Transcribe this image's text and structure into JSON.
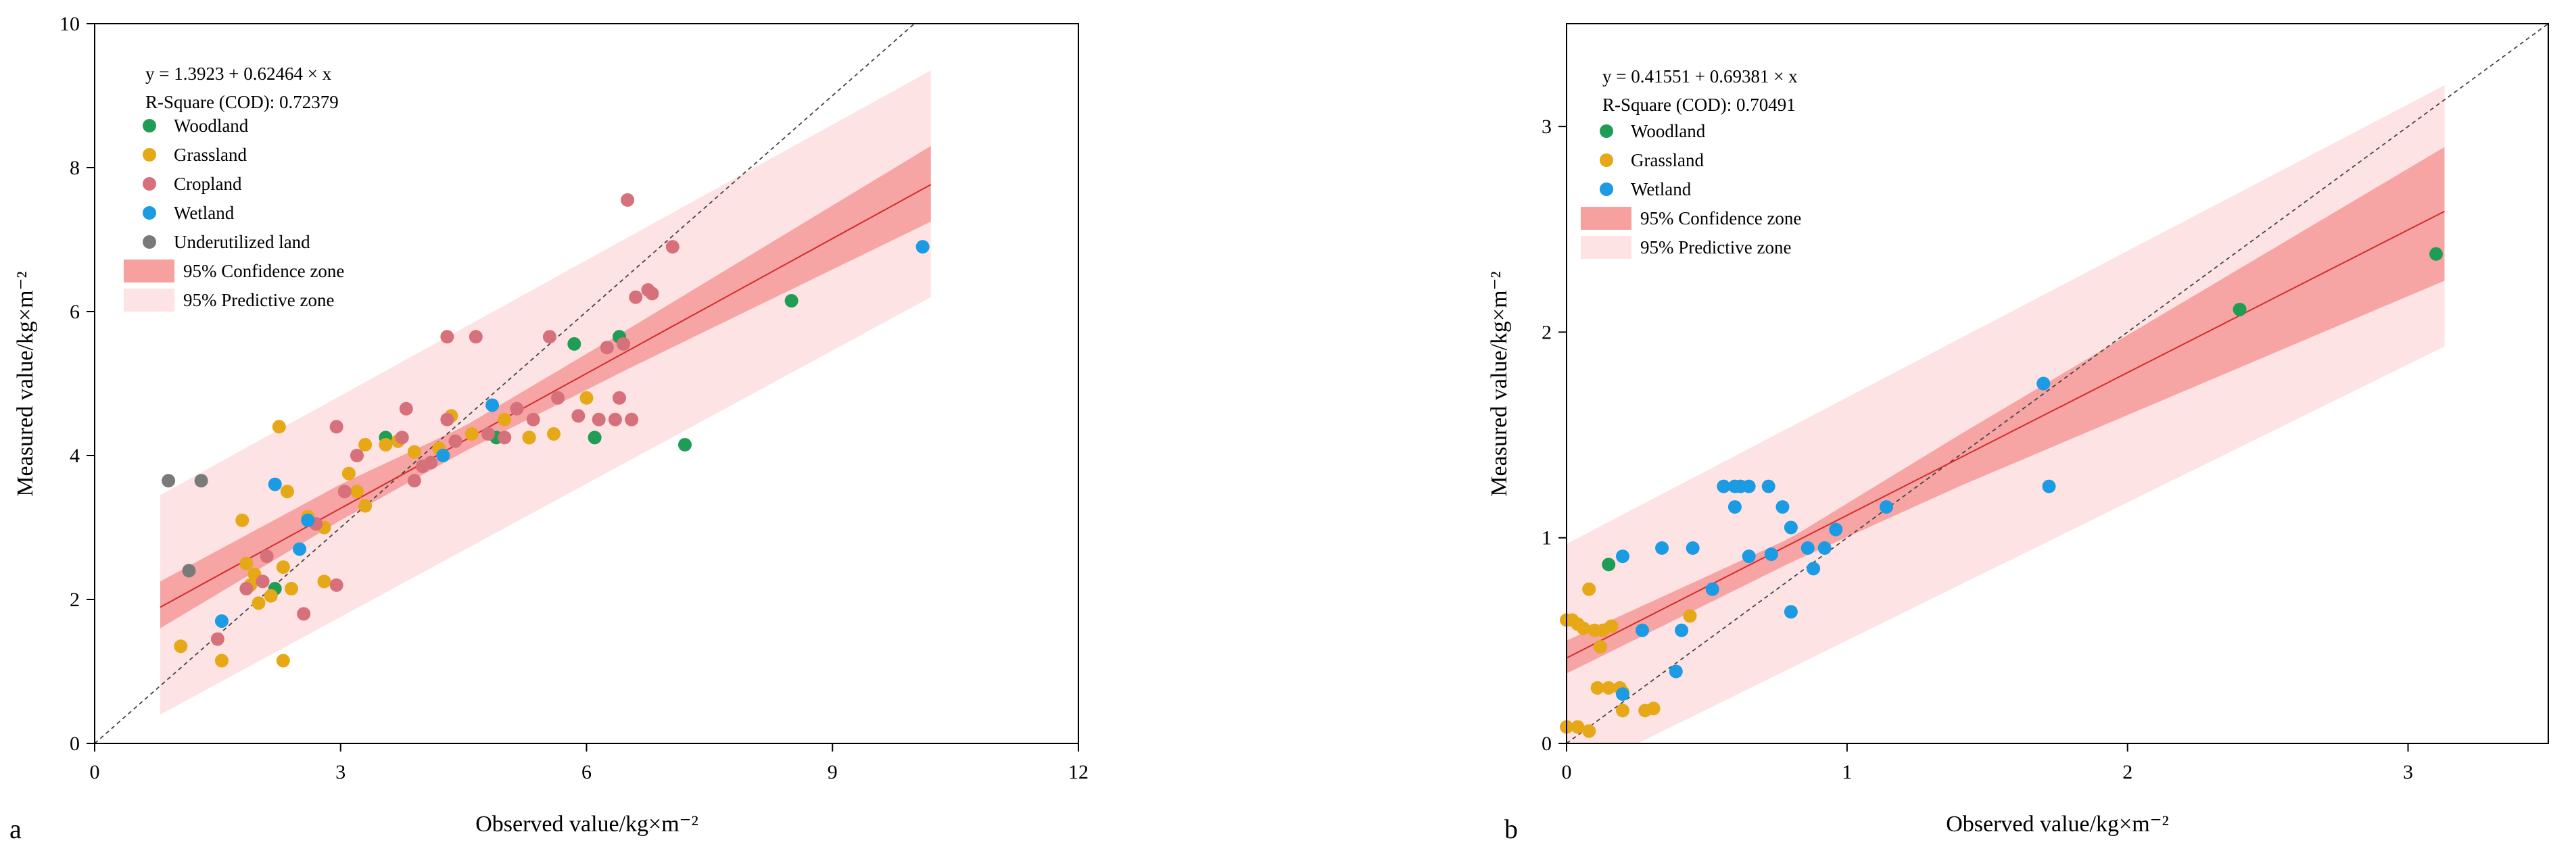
{
  "colors": {
    "Woodland": "#1f9d55",
    "Grassland": "#e6a817",
    "Cropland": "#d6707a",
    "Wetland": "#1a9be3",
    "Underutilized land": "#7a7a7a",
    "confidence": "#f6a0a0",
    "predictive": "#fde3e3",
    "fit_line": "#d42c2c",
    "ref_line": "#444444"
  },
  "chart_data": [
    {
      "type": "scatter",
      "panel_label": "a",
      "xlabel": "Observed value/kg×m⁻²",
      "ylabel": "Measured value/kg×m⁻²",
      "xlim": [
        0,
        12
      ],
      "ylim": [
        0,
        10
      ],
      "xticks": [
        0,
        3,
        6,
        9,
        12
      ],
      "yticks": [
        0,
        2,
        4,
        6,
        8,
        10
      ],
      "xtick_labels": [
        "0",
        "3",
        "6",
        "9",
        "12"
      ],
      "ytick_labels": [
        "0",
        "2",
        "4",
        "6",
        "8",
        "10"
      ],
      "equation": "y = 1.3923 + 0.62464 × x",
      "r_square": "R-Square (COD): 0.72379",
      "fit": {
        "intercept": 1.3923,
        "slope": 0.62464,
        "x_range": [
          0.8,
          10.2
        ]
      },
      "confidence_band": {
        "x": [
          0.8,
          3,
          4.5,
          6.5,
          10.2
        ],
        "lower": [
          1.6,
          3.1,
          4.05,
          5.2,
          7.25
        ],
        "upper": [
          2.25,
          3.6,
          4.4,
          5.75,
          8.3
        ]
      },
      "predictive_band": {
        "x": [
          0.8,
          10.2
        ],
        "lower": [
          0.4,
          6.2
        ],
        "upper": [
          3.45,
          9.35
        ]
      },
      "legend": [
        {
          "label": "Woodland",
          "kind": "point"
        },
        {
          "label": "Grassland",
          "kind": "point"
        },
        {
          "label": "Cropland",
          "kind": "point"
        },
        {
          "label": "Wetland",
          "kind": "point"
        },
        {
          "label": "Underutilized land",
          "kind": "point"
        },
        {
          "label": "95% Confidence zone",
          "kind": "confidence"
        },
        {
          "label": "95% Predictive zone",
          "kind": "predictive"
        }
      ],
      "series": [
        {
          "name": "Woodland",
          "points": [
            [
              3.55,
              4.25
            ],
            [
              4.9,
              4.25
            ],
            [
              5.3,
              4.25
            ],
            [
              5.85,
              5.55
            ],
            [
              6.4,
              5.65
            ],
            [
              6.1,
              4.25
            ],
            [
              7.2,
              4.15
            ],
            [
              8.5,
              6.15
            ],
            [
              2.2,
              2.15
            ]
          ]
        },
        {
          "name": "Grassland",
          "points": [
            [
              1.05,
              1.35
            ],
            [
              1.55,
              1.15
            ],
            [
              1.8,
              3.1
            ],
            [
              1.85,
              2.5
            ],
            [
              1.9,
              2.2
            ],
            [
              1.95,
              2.35
            ],
            [
              2.0,
              1.95
            ],
            [
              2.15,
              2.05
            ],
            [
              2.25,
              4.4
            ],
            [
              2.3,
              2.45
            ],
            [
              2.35,
              3.5
            ],
            [
              2.4,
              2.15
            ],
            [
              2.3,
              1.15
            ],
            [
              2.6,
              3.15
            ],
            [
              2.8,
              3.0
            ],
            [
              2.8,
              2.25
            ],
            [
              3.1,
              3.75
            ],
            [
              3.2,
              3.5
            ],
            [
              3.3,
              3.3
            ],
            [
              3.3,
              4.15
            ],
            [
              3.55,
              4.15
            ],
            [
              3.7,
              4.2
            ],
            [
              3.9,
              4.05
            ],
            [
              4.2,
              4.1
            ],
            [
              4.35,
              4.55
            ],
            [
              4.6,
              4.3
            ],
            [
              5.0,
              4.5
            ],
            [
              5.3,
              4.25
            ],
            [
              5.6,
              4.3
            ],
            [
              6.0,
              4.8
            ]
          ]
        },
        {
          "name": "Cropland",
          "points": [
            [
              1.5,
              1.45
            ],
            [
              1.85,
              2.15
            ],
            [
              2.05,
              2.25
            ],
            [
              2.1,
              2.6
            ],
            [
              2.55,
              1.8
            ],
            [
              2.7,
              3.05
            ],
            [
              2.95,
              2.2
            ],
            [
              2.95,
              4.4
            ],
            [
              3.05,
              3.5
            ],
            [
              3.2,
              4.0
            ],
            [
              3.75,
              4.25
            ],
            [
              3.8,
              4.65
            ],
            [
              3.9,
              3.65
            ],
            [
              4.0,
              3.85
            ],
            [
              4.1,
              3.9
            ],
            [
              4.3,
              4.5
            ],
            [
              4.3,
              5.65
            ],
            [
              4.4,
              4.2
            ],
            [
              4.65,
              5.65
            ],
            [
              4.8,
              4.3
            ],
            [
              5.0,
              4.25
            ],
            [
              5.15,
              4.65
            ],
            [
              5.35,
              4.5
            ],
            [
              5.55,
              5.65
            ],
            [
              5.65,
              4.8
            ],
            [
              5.9,
              4.55
            ],
            [
              6.15,
              4.5
            ],
            [
              6.25,
              5.5
            ],
            [
              6.35,
              4.5
            ],
            [
              6.4,
              4.8
            ],
            [
              6.45,
              5.55
            ],
            [
              6.5,
              7.55
            ],
            [
              6.55,
              4.5
            ],
            [
              6.6,
              6.2
            ],
            [
              6.75,
              6.3
            ],
            [
              6.8,
              6.25
            ],
            [
              7.05,
              6.9
            ]
          ]
        },
        {
          "name": "Wetland",
          "points": [
            [
              1.55,
              1.7
            ],
            [
              2.2,
              3.6
            ],
            [
              2.5,
              2.7
            ],
            [
              2.6,
              3.1
            ],
            [
              4.85,
              4.7
            ],
            [
              10.1,
              6.9
            ],
            [
              4.25,
              4.0
            ]
          ]
        },
        {
          "name": "Underutilized land",
          "points": [
            [
              0.9,
              3.65
            ],
            [
              1.3,
              3.65
            ],
            [
              1.15,
              2.4
            ]
          ]
        }
      ]
    },
    {
      "type": "scatter",
      "panel_label": "b",
      "xlabel": "Observed value/kg×m⁻²",
      "ylabel": "Measured value/kg×m⁻²",
      "xlim": [
        0,
        3.5
      ],
      "ylim": [
        0,
        3.5
      ],
      "xticks": [
        0,
        1,
        2,
        3
      ],
      "yticks": [
        0,
        1,
        2,
        3
      ],
      "xtick_labels": [
        "0",
        "1",
        "2",
        "3"
      ],
      "ytick_labels": [
        "0",
        "1",
        "2",
        "3"
      ],
      "equation": "y = 0.41551 + 0.69381 × x",
      "r_square": "R-Square (COD): 0.70491",
      "fit": {
        "intercept": 0.41551,
        "slope": 0.69381,
        "x_range": [
          0,
          3.13
        ]
      },
      "confidence_band": {
        "x": [
          0,
          0.8,
          1.4,
          3.13
        ],
        "lower": [
          0.34,
          0.88,
          1.25,
          2.25
        ],
        "upper": [
          0.5,
          1.0,
          1.5,
          2.9
        ]
      },
      "predictive_band": {
        "x": [
          0,
          3.13
        ],
        "lower": [
          -0.17,
          1.93
        ],
        "upper": [
          0.97,
          3.2
        ]
      },
      "legend": [
        {
          "label": "Woodland",
          "kind": "point"
        },
        {
          "label": "Grassland",
          "kind": "point"
        },
        {
          "label": "Wetland",
          "kind": "point"
        },
        {
          "label": "95% Confidence zone",
          "kind": "confidence"
        },
        {
          "label": "95% Predictive zone",
          "kind": "predictive"
        }
      ],
      "series": [
        {
          "name": "Woodland",
          "points": [
            [
              0.15,
              0.87
            ],
            [
              2.4,
              2.11
            ],
            [
              3.1,
              2.38
            ]
          ]
        },
        {
          "name": "Grassland",
          "points": [
            [
              0.0,
              0.6
            ],
            [
              0.02,
              0.6
            ],
            [
              0.04,
              0.58
            ],
            [
              0.06,
              0.56
            ],
            [
              0.1,
              0.55
            ],
            [
              0.13,
              0.55
            ],
            [
              0.16,
              0.57
            ],
            [
              0.12,
              0.47
            ],
            [
              0.11,
              0.27
            ],
            [
              0.15,
              0.27
            ],
            [
              0.19,
              0.27
            ],
            [
              0.2,
              0.25
            ],
            [
              0.28,
              0.16
            ],
            [
              0.31,
              0.17
            ],
            [
              0.2,
              0.16
            ],
            [
              0.0,
              0.08
            ],
            [
              0.04,
              0.08
            ],
            [
              0.08,
              0.06
            ],
            [
              0.08,
              0.75
            ],
            [
              0.44,
              0.62
            ]
          ]
        },
        {
          "name": "Wetland",
          "points": [
            [
              0.2,
              0.24
            ],
            [
              0.2,
              0.91
            ],
            [
              0.27,
              0.55
            ],
            [
              0.34,
              0.95
            ],
            [
              0.39,
              0.35
            ],
            [
              0.41,
              0.55
            ],
            [
              0.45,
              0.95
            ],
            [
              0.52,
              0.75
            ],
            [
              0.56,
              1.25
            ],
            [
              0.6,
              1.25
            ],
            [
              0.62,
              1.25
            ],
            [
              0.6,
              1.15
            ],
            [
              0.65,
              1.25
            ],
            [
              0.65,
              0.91
            ],
            [
              0.72,
              1.25
            ],
            [
              0.73,
              0.92
            ],
            [
              0.77,
              1.15
            ],
            [
              0.8,
              1.05
            ],
            [
              0.8,
              0.64
            ],
            [
              0.86,
              0.95
            ],
            [
              0.88,
              0.85
            ],
            [
              0.92,
              0.95
            ],
            [
              0.96,
              1.04
            ],
            [
              1.14,
              1.15
            ],
            [
              1.7,
              1.75
            ],
            [
              1.72,
              1.25
            ]
          ]
        }
      ]
    }
  ]
}
